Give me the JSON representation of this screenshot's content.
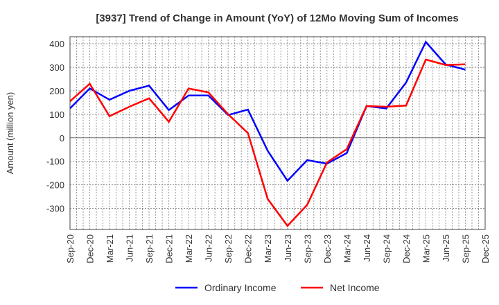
{
  "chart_data": {
    "type": "line",
    "title": "[3937]  Trend of Change in Amount (YoY) of 12Mo Moving Sum of Incomes",
    "xlabel": "",
    "ylabel": "Amount (million yen)",
    "ylim": [
      -390,
      430
    ],
    "yticks": [
      400,
      300,
      200,
      100,
      0,
      -100,
      -200,
      -300
    ],
    "ytick_labels": [
      "400",
      "300",
      "200",
      "100",
      "0",
      "-100",
      "-200",
      "-300"
    ],
    "categories": [
      "Sep-20",
      "Dec-20",
      "Mar-21",
      "Jun-21",
      "Sep-21",
      "Dec-21",
      "Mar-22",
      "Jun-22",
      "Sep-22",
      "Dec-22",
      "Mar-23",
      "Jun-23",
      "Sep-23",
      "Dec-23",
      "Mar-24",
      "Jun-24",
      "Sep-24",
      "Dec-24",
      "Mar-25",
      "Jun-25",
      "Sep-25",
      "Dec-25"
    ],
    "grid": true,
    "legend_position": "bottom",
    "series": [
      {
        "name": "Ordinary Income",
        "color": "#0000ff",
        "values": [
          125,
          210,
          162,
          200,
          222,
          118,
          180,
          180,
          97,
          120,
          -55,
          -183,
          -95,
          -110,
          -65,
          135,
          125,
          235,
          408,
          312,
          290,
          null
        ]
      },
      {
        "name": "Net Income",
        "color": "#ff0000",
        "values": [
          155,
          230,
          92,
          132,
          168,
          68,
          210,
          193,
          100,
          20,
          -260,
          -375,
          -285,
          -105,
          -48,
          135,
          132,
          137,
          333,
          310,
          313,
          null
        ]
      }
    ]
  }
}
